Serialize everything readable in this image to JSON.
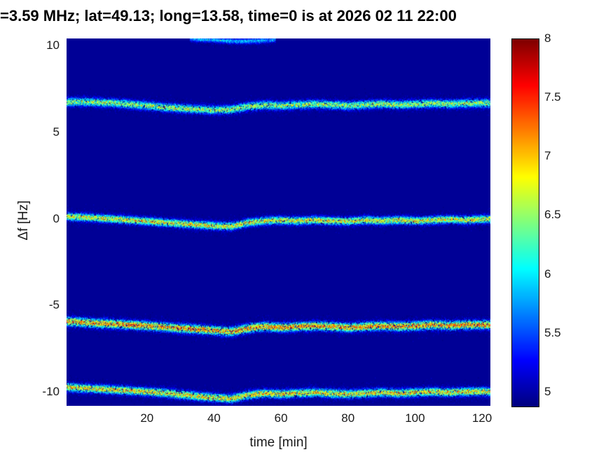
{
  "chart_data": {
    "type": "heatmap",
    "title": "=3.59 MHz;  lat=49.13; long=13.58, time=0 is at 2026 02 11 22:00",
    "xlabel": "time [min]",
    "ylabel": "Δf [Hz]",
    "xlim": [
      -4,
      122.5
    ],
    "ylim": [
      -10.8,
      10.4
    ],
    "x_ticks": [
      20,
      40,
      60,
      80,
      100,
      120
    ],
    "y_ticks": [
      10,
      5,
      0,
      -5,
      -10
    ],
    "colormap": "jet",
    "background_value": 4.95,
    "colorbar": {
      "min": 4.88,
      "max": 8,
      "ticks": [
        8,
        7.5,
        7,
        6.5,
        6,
        5.5,
        5
      ],
      "position": "right"
    },
    "grid": false,
    "x_grid": [
      -4,
      0,
      5,
      10,
      15,
      20,
      25,
      30,
      35,
      40,
      45,
      50,
      55,
      60,
      65,
      70,
      75,
      80,
      85,
      90,
      95,
      100,
      105,
      110,
      115,
      120,
      122.5
    ],
    "series": [
      {
        "name": "doppler-trace-plus-6.7Hz",
        "y": [
          6.75,
          6.78,
          6.74,
          6.7,
          6.62,
          6.55,
          6.45,
          6.4,
          6.34,
          6.3,
          6.32,
          6.5,
          6.58,
          6.55,
          6.6,
          6.64,
          6.6,
          6.55,
          6.6,
          6.65,
          6.6,
          6.64,
          6.68,
          6.65,
          6.68,
          6.7,
          6.68
        ],
        "peak_value": 7.0,
        "spread_hz": 0.16
      },
      {
        "name": "doppler-trace-0Hz",
        "y": [
          0.15,
          0.12,
          0.06,
          0.0,
          -0.06,
          -0.12,
          -0.2,
          -0.26,
          -0.32,
          -0.38,
          -0.42,
          -0.2,
          -0.1,
          -0.06,
          -0.1,
          -0.05,
          -0.1,
          -0.12,
          -0.06,
          -0.1,
          -0.05,
          -0.1,
          -0.06,
          0.0,
          -0.05,
          0.0,
          0.0
        ],
        "peak_value": 7.3,
        "spread_hz": 0.15
      },
      {
        "name": "doppler-trace-minus-6Hz",
        "y": [
          -5.9,
          -5.95,
          -6.0,
          -6.05,
          -6.1,
          -6.16,
          -6.22,
          -6.3,
          -6.36,
          -6.42,
          -6.5,
          -6.3,
          -6.2,
          -6.26,
          -6.2,
          -6.16,
          -6.2,
          -6.26,
          -6.2,
          -6.16,
          -6.2,
          -6.16,
          -6.1,
          -6.14,
          -6.1,
          -6.1,
          -6.1
        ],
        "peak_value": 7.7,
        "spread_hz": 0.17
      },
      {
        "name": "doppler-trace-minus-10Hz",
        "y": [
          -9.7,
          -9.75,
          -9.8,
          -9.85,
          -9.9,
          -9.96,
          -10.02,
          -10.12,
          -10.22,
          -10.3,
          -10.36,
          -10.15,
          -10.05,
          -10.1,
          -10.05,
          -10.0,
          -10.06,
          -10.1,
          -10.05,
          -10.0,
          -10.05,
          -10.0,
          -9.96,
          -10.0,
          -9.96,
          -9.95,
          -9.96
        ],
        "peak_value": 7.4,
        "spread_hz": 0.16
      },
      {
        "name": "doppler-trace-plus-10Hz-partial",
        "x": [
          33,
          38,
          43,
          48,
          53,
          58
        ],
        "y": [
          10.42,
          10.36,
          10.3,
          10.26,
          10.3,
          10.36
        ],
        "peak_value": 6.1,
        "spread_hz": 0.1
      }
    ]
  }
}
